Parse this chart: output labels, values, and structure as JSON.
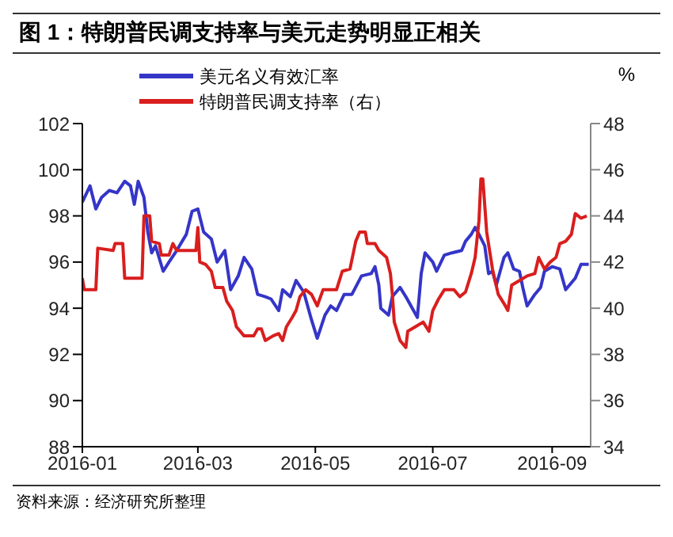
{
  "chart_data": {
    "type": "line",
    "title": "图 1：特朗普民调支持率与美元走势明显正相关",
    "y2label": "%",
    "annotations": [
      "资料来源：经济研究所整理"
    ],
    "legend": "top",
    "grid": false,
    "marker": "none",
    "line_style": "solid",
    "xlim": [
      "2016-01-01",
      "2016-09-21"
    ],
    "xticks": [
      {
        "value": "2016-01-01",
        "label": "2016-01"
      },
      {
        "value": "2016-03-01",
        "label": "2016-03"
      },
      {
        "value": "2016-05-01",
        "label": "2016-05"
      },
      {
        "value": "2016-07-01",
        "label": "2016-07"
      },
      {
        "value": "2016-09-01",
        "label": "2016-09"
      }
    ],
    "ylim": [
      88,
      102
    ],
    "yticks": [
      88,
      90,
      92,
      94,
      96,
      98,
      100,
      102
    ],
    "y2lim": [
      34,
      48
    ],
    "y2ticks": [
      34,
      36,
      38,
      40,
      42,
      44,
      46,
      48
    ],
    "series": [
      {
        "name": "美元名义有效汇率",
        "color": "#3535c8",
        "x": [
          "2016-01-01",
          "2016-01-05",
          "2016-01-08",
          "2016-01-11",
          "2016-01-15",
          "2016-01-19",
          "2016-01-23",
          "2016-01-26",
          "2016-01-28",
          "2016-01-30",
          "2016-02-02",
          "2016-02-04",
          "2016-02-06",
          "2016-02-08",
          "2016-02-12",
          "2016-02-15",
          "2016-02-19",
          "2016-02-24",
          "2016-02-27",
          "2016-03-01",
          "2016-03-04",
          "2016-03-08",
          "2016-03-11",
          "2016-03-15",
          "2016-03-18",
          "2016-03-22",
          "2016-03-25",
          "2016-03-29",
          "2016-04-01",
          "2016-04-05",
          "2016-04-08",
          "2016-04-12",
          "2016-04-14",
          "2016-04-18",
          "2016-04-21",
          "2016-04-25",
          "2016-04-29",
          "2016-05-02",
          "2016-05-06",
          "2016-05-09",
          "2016-05-12",
          "2016-05-16",
          "2016-05-20",
          "2016-05-25",
          "2016-05-30",
          "2016-06-01",
          "2016-06-03",
          "2016-06-04",
          "2016-06-08",
          "2016-06-10",
          "2016-06-14",
          "2016-06-17",
          "2016-06-21",
          "2016-06-23",
          "2016-06-25",
          "2016-06-27",
          "2016-07-01",
          "2016-07-03",
          "2016-07-07",
          "2016-07-11",
          "2016-07-16",
          "2016-07-18",
          "2016-07-21",
          "2016-07-23",
          "2016-07-25",
          "2016-07-28",
          "2016-07-30",
          "2016-08-01",
          "2016-08-03",
          "2016-08-07",
          "2016-08-09",
          "2016-08-12",
          "2016-08-15",
          "2016-08-17",
          "2016-08-19",
          "2016-08-23",
          "2016-08-26",
          "2016-08-28",
          "2016-09-01",
          "2016-09-05",
          "2016-09-08",
          "2016-09-13",
          "2016-09-16",
          "2016-09-20"
        ],
        "values": [
          98.6,
          99.3,
          98.3,
          98.8,
          99.1,
          99.0,
          99.5,
          99.3,
          98.5,
          99.5,
          98.8,
          97.3,
          96.4,
          96.7,
          95.6,
          96.0,
          96.5,
          97.2,
          98.2,
          98.3,
          97.3,
          97.0,
          96.0,
          96.5,
          94.8,
          95.4,
          96.2,
          95.7,
          94.6,
          94.5,
          94.4,
          93.9,
          94.8,
          94.5,
          95.2,
          94.7,
          93.5,
          92.7,
          93.7,
          94.1,
          93.9,
          94.6,
          94.6,
          95.4,
          95.5,
          95.8,
          95.0,
          94.0,
          93.7,
          94.5,
          94.9,
          94.5,
          93.9,
          93.6,
          95.5,
          96.4,
          96.0,
          95.6,
          96.3,
          96.4,
          96.5,
          96.9,
          97.2,
          97.5,
          97.2,
          96.7,
          95.5,
          95.6,
          95.0,
          96.2,
          96.4,
          95.7,
          95.6,
          94.8,
          94.1,
          94.6,
          94.9,
          95.6,
          95.8,
          95.7,
          94.8,
          95.3,
          95.9,
          95.9
        ]
      },
      {
        "name": "特朗普民调支持率（右）",
        "color": "#d91e1e",
        "axis": "y2",
        "x": [
          "2016-01-01",
          "2016-01-02",
          "2016-01-08",
          "2016-01-09",
          "2016-01-17",
          "2016-01-18",
          "2016-01-22",
          "2016-01-23",
          "2016-02-01",
          "2016-02-02",
          "2016-02-05",
          "2016-02-06",
          "2016-02-10",
          "2016-02-11",
          "2016-02-15",
          "2016-02-17",
          "2016-02-19",
          "2016-02-29",
          "2016-03-01",
          "2016-03-02",
          "2016-03-05",
          "2016-03-08",
          "2016-03-10",
          "2016-03-14",
          "2016-03-16",
          "2016-03-19",
          "2016-03-21",
          "2016-03-25",
          "2016-03-30",
          "2016-04-01",
          "2016-04-03",
          "2016-04-05",
          "2016-04-09",
          "2016-04-12",
          "2016-04-14",
          "2016-04-16",
          "2016-04-19",
          "2016-04-21",
          "2016-04-23",
          "2016-04-26",
          "2016-04-29",
          "2016-05-02",
          "2016-05-05",
          "2016-05-12",
          "2016-05-15",
          "2016-05-19",
          "2016-05-22",
          "2016-05-24",
          "2016-05-27",
          "2016-05-28",
          "2016-06-01",
          "2016-06-03",
          "2016-06-07",
          "2016-06-09",
          "2016-06-10",
          "2016-06-11",
          "2016-06-14",
          "2016-06-17",
          "2016-06-18",
          "2016-06-22",
          "2016-06-26",
          "2016-06-29",
          "2016-07-01",
          "2016-07-04",
          "2016-07-07",
          "2016-07-12",
          "2016-07-15",
          "2016-07-18",
          "2016-07-21",
          "2016-07-23",
          "2016-07-25",
          "2016-07-26",
          "2016-07-27",
          "2016-07-29",
          "2016-08-01",
          "2016-08-04",
          "2016-08-07",
          "2016-08-09",
          "2016-08-11",
          "2016-08-15",
          "2016-08-19",
          "2016-08-23",
          "2016-08-25",
          "2016-08-28",
          "2016-08-31",
          "2016-09-03",
          "2016-09-05",
          "2016-09-08",
          "2016-09-11",
          "2016-09-13",
          "2016-09-16",
          "2016-09-19"
        ],
        "values": [
          41.3,
          40.8,
          40.8,
          42.6,
          42.5,
          42.8,
          42.8,
          41.3,
          41.3,
          44.0,
          44.0,
          42.9,
          42.8,
          42.3,
          42.3,
          42.8,
          42.5,
          42.5,
          43.5,
          42.0,
          41.9,
          41.6,
          40.9,
          40.9,
          40.3,
          39.9,
          39.2,
          38.8,
          38.8,
          39.1,
          39.1,
          38.6,
          38.8,
          38.9,
          38.6,
          39.2,
          39.6,
          39.9,
          40.5,
          40.8,
          40.6,
          40.1,
          40.8,
          40.8,
          41.6,
          41.7,
          42.9,
          43.3,
          43.3,
          42.8,
          42.8,
          42.5,
          42.2,
          41.5,
          40.6,
          39.4,
          38.6,
          38.3,
          39.0,
          39.2,
          39.4,
          39.0,
          39.9,
          40.4,
          40.8,
          40.8,
          40.5,
          40.7,
          41.5,
          42.2,
          43.8,
          45.6,
          45.6,
          43.3,
          41.7,
          40.6,
          40.2,
          39.9,
          41.0,
          41.2,
          41.4,
          41.5,
          42.2,
          41.7,
          42.0,
          42.2,
          42.8,
          42.9,
          43.2,
          44.1,
          43.9,
          44.0
        ]
      }
    ]
  }
}
